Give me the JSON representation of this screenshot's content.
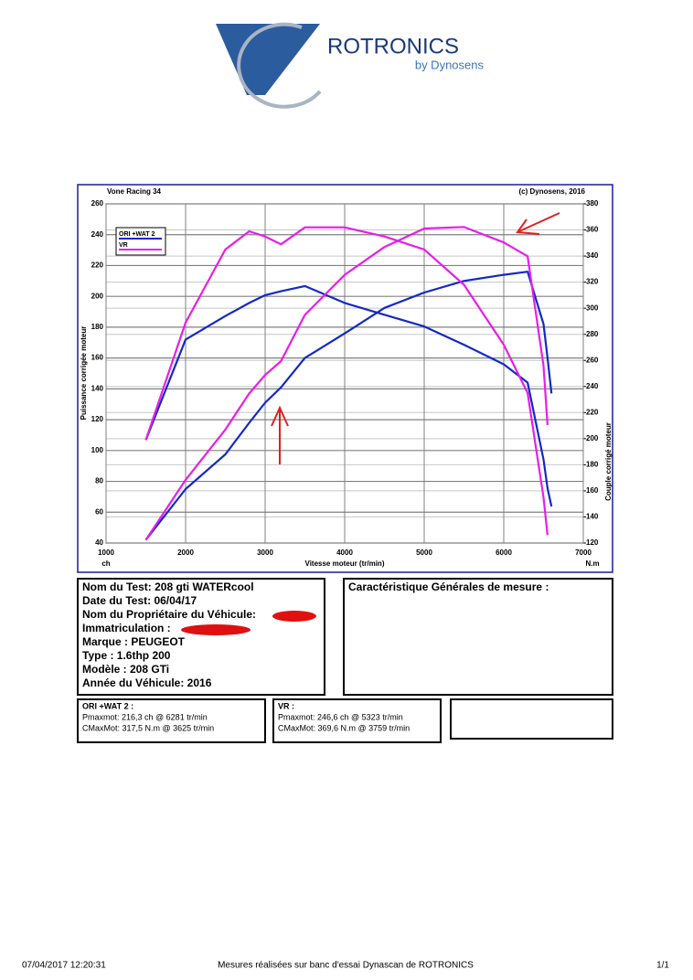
{
  "header": {
    "logo": "ROTRONICS",
    "logo_sub": "by Dynosens"
  },
  "chart_data": {
    "type": "line",
    "title": "Vone Racing 34",
    "subtitle": "(c) Dynosens, 2016",
    "x_label": "Vitesse moteur (tr/min)",
    "y_label": "Puissance corrigée moteur",
    "y_unit": "ch",
    "y2_label": "Couple corrigé moteur",
    "y2_unit": "N.m",
    "x": [
      1500,
      2000,
      2500,
      2800,
      3000,
      3200,
      3500,
      4000,
      4500,
      5000,
      5500,
      6000,
      6300,
      6500,
      6550,
      6600
    ],
    "series": [
      {
        "name": "ORI +WAT 2",
        "color": "#1428c8",
        "values": [
          42,
          75,
          97.5,
          118,
          131,
          141,
          160,
          176,
          192.5,
          202.5,
          210,
          214,
          216,
          182,
          160,
          137
        ],
        "values_y2": [
          199,
          276,
          294,
          304,
          310,
          313,
          317,
          304,
          295,
          286,
          272,
          257,
          243,
          184,
          162,
          148
        ]
      },
      {
        "name": "VR",
        "color": "#e81ee8",
        "values": [
          42,
          81,
          113.6,
          137,
          149,
          158,
          188,
          214,
          232,
          244,
          245,
          235,
          226,
          155,
          116.5,
          null
        ],
        "values_y2": [
          199,
          289,
          345,
          359,
          355,
          349,
          362,
          362,
          355,
          345,
          318,
          272,
          235,
          155,
          126,
          null
        ]
      }
    ],
    "xlim": [
      1000,
      7000
    ],
    "xticks": [
      1000,
      2000,
      3000,
      4000,
      5000,
      6000,
      7000
    ],
    "ylim": [
      40,
      260
    ],
    "yticks": [
      40,
      60,
      80,
      100,
      120,
      140,
      160,
      180,
      200,
      220,
      240,
      260
    ],
    "y2lim": [
      120,
      380
    ],
    "y2ticks": [
      120,
      140,
      160,
      180,
      200,
      220,
      240,
      260,
      280,
      300,
      320,
      340,
      360,
      380
    ],
    "grid": true,
    "legend": "upper left"
  },
  "info": {
    "lines": [
      "Nom du Test: 208 gti WATERcool",
      "Date du Test: 06/04/17",
      "Nom du Propriétaire du Véhicule:",
      "Immatriculation  :",
      "Marque  : PEUGEOT",
      "Type  : 1.6thp 200",
      "Modèle  : 208 GTi",
      "Année du Véhicule: 2016"
    ],
    "general": "Caractéristique Générales de mesure :"
  },
  "results": [
    {
      "name": "ORI +WAT 2 :",
      "power": "Pmaxmot: 216,3 ch @ 6281 tr/min",
      "torque": "CMaxMot: 317,5 N.m @ 3625 tr/min"
    },
    {
      "name": "VR :",
      "power": "Pmaxmot: 246,6 ch @ 5323 tr/min",
      "torque": "CMaxMot: 369,6 N.m @ 3759 tr/min"
    }
  ],
  "footer": {
    "date": "07/04/2017 12:20:31",
    "text": "Mesures réalisées sur banc d'essai Dynascan de ROTRONICS",
    "page": "1/1"
  }
}
